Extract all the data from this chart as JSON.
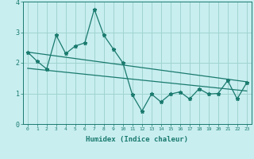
{
  "xlabel": "Humidex (Indice chaleur)",
  "background_color": "#c8eef0",
  "grid_color": "#a0d4d0",
  "line_color": "#1a7a6e",
  "xlim": [
    -0.5,
    23.5
  ],
  "ylim": [
    0,
    4
  ],
  "xticks": [
    0,
    1,
    2,
    3,
    4,
    5,
    6,
    7,
    8,
    9,
    10,
    11,
    12,
    13,
    14,
    15,
    16,
    17,
    18,
    19,
    20,
    21,
    22,
    23
  ],
  "yticks": [
    0,
    1,
    2,
    3,
    4
  ],
  "data_line_x": [
    0,
    1,
    2,
    3,
    4,
    5,
    6,
    7,
    8,
    9,
    10,
    11,
    12,
    13,
    14,
    15,
    16,
    17,
    18,
    19,
    20,
    21,
    22,
    23
  ],
  "data_line_y": [
    2.35,
    2.05,
    1.8,
    2.9,
    2.3,
    2.55,
    2.65,
    3.75,
    2.9,
    2.45,
    2.0,
    0.95,
    0.42,
    0.98,
    0.72,
    0.98,
    1.05,
    0.82,
    1.15,
    0.98,
    1.0,
    1.42,
    0.82,
    1.35
  ],
  "trend1_x": [
    0,
    23
  ],
  "trend1_y": [
    2.35,
    1.38
  ],
  "trend2_x": [
    0,
    23
  ],
  "trend2_y": [
    1.82,
    1.08
  ]
}
